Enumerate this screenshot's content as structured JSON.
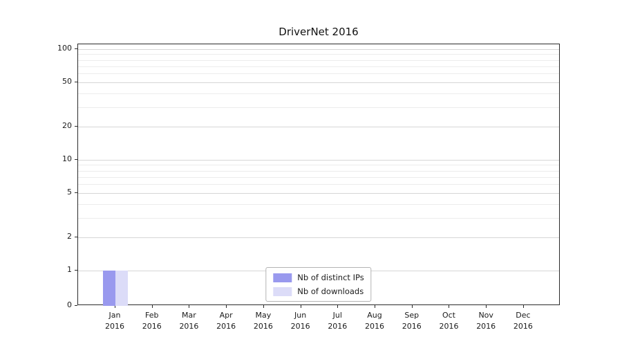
{
  "chart_data": {
    "type": "bar",
    "title": "DriverNet 2016",
    "y_scale": "symlog",
    "ylim": [
      0,
      100
    ],
    "grid": true,
    "legend_position": "lower center",
    "y_ticks": [
      0,
      1,
      2,
      5,
      10,
      20,
      50,
      100
    ],
    "y_minor_gridlines": [
      3,
      4,
      6,
      7,
      8,
      9,
      30,
      40,
      60,
      70,
      80,
      90
    ],
    "x_categories": [
      {
        "month": "Jan",
        "year": "2016"
      },
      {
        "month": "Feb",
        "year": "2016"
      },
      {
        "month": "Mar",
        "year": "2016"
      },
      {
        "month": "Apr",
        "year": "2016"
      },
      {
        "month": "May",
        "year": "2016"
      },
      {
        "month": "Jun",
        "year": "2016"
      },
      {
        "month": "Jul",
        "year": "2016"
      },
      {
        "month": "Aug",
        "year": "2016"
      },
      {
        "month": "Sep",
        "year": "2016"
      },
      {
        "month": "Oct",
        "year": "2016"
      },
      {
        "month": "Nov",
        "year": "2016"
      },
      {
        "month": "Dec",
        "year": "2016"
      }
    ],
    "series": [
      {
        "name": "Nb of distinct IPs",
        "color": "#9999ee",
        "values": [
          1,
          0,
          0,
          0,
          0,
          0,
          0,
          0,
          0,
          0,
          0,
          0
        ]
      },
      {
        "name": "Nb of downloads",
        "color": "#dcdcf8",
        "values": [
          1,
          0,
          0,
          0,
          0,
          0,
          0,
          0,
          0,
          0,
          0,
          0
        ]
      }
    ]
  }
}
